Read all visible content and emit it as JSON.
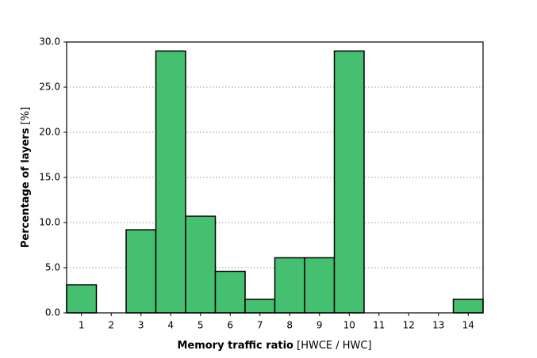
{
  "chart_data": {
    "type": "bar",
    "xlabel": [
      "Memory traffic ratio",
      "[HWCE / HWC]"
    ],
    "ylabel": [
      "Percentage of layers",
      "[%]"
    ],
    "categories": [
      "1",
      "2",
      "3",
      "4",
      "5",
      "6",
      "7",
      "8",
      "9",
      "10",
      "11",
      "12",
      "13",
      "14"
    ],
    "values": [
      3.1,
      0,
      9.2,
      29,
      10.7,
      4.6,
      1.5,
      6.1,
      6.1,
      29,
      0,
      0,
      0,
      1.5
    ],
    "color": "#45c070",
    "ylim": [
      0,
      30
    ],
    "yticks": [
      {
        "value": 0,
        "label": "0.0"
      },
      {
        "value": 5,
        "label": "5.0"
      },
      {
        "value": 10,
        "label": "10.0"
      },
      {
        "value": 15,
        "label": "15.0"
      },
      {
        "value": 20,
        "label": "20.0"
      },
      {
        "value": 25,
        "label": "25.0"
      },
      {
        "value": 30,
        "label": "30.0"
      }
    ],
    "grid": true
  }
}
